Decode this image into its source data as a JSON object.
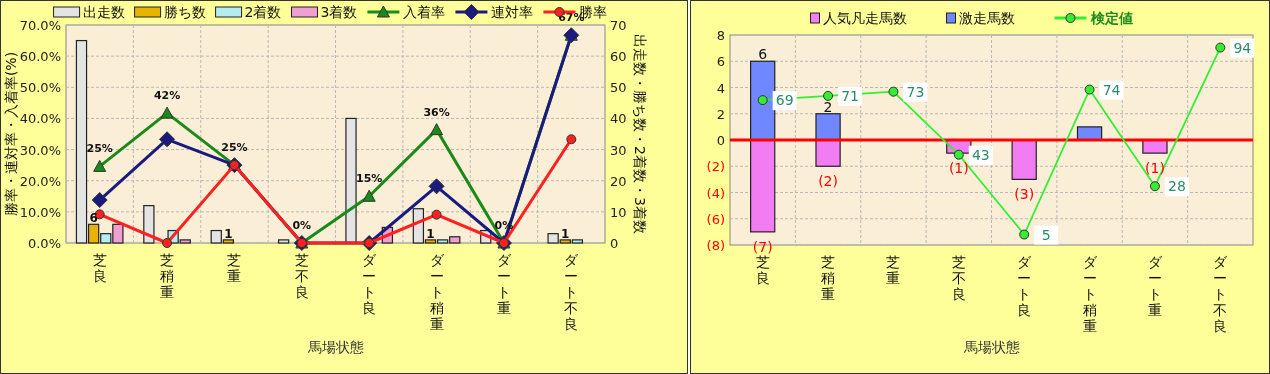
{
  "chart_data": [
    {
      "type": "bar",
      "xlabel": "馬場状態",
      "ylabel": "勝率・連対率・入着率(%)",
      "y2label": "出走数・勝ち数・2着数・3着数",
      "categories": [
        "芝良",
        "芝稍重",
        "芝重",
        "芝不良",
        "ダート良",
        "ダート稍重",
        "ダート重",
        "ダート不良"
      ],
      "series": [
        {
          "name": "出走数",
          "axis": "y2",
          "color": "#e4e4e4",
          "values": [
            65,
            12,
            4,
            1,
            40,
            11,
            4,
            3
          ]
        },
        {
          "name": "勝ち数",
          "axis": "y2",
          "color": "#e8b400",
          "values": [
            6,
            0,
            1,
            0,
            0,
            1,
            0,
            1
          ],
          "value_labels": [
            "6",
            null,
            "1",
            null,
            null,
            "1",
            null,
            "1"
          ]
        },
        {
          "name": "2着数",
          "axis": "y2",
          "color": "#b4ecf0",
          "values": [
            3,
            4,
            0,
            0,
            0,
            1,
            0,
            1
          ]
        },
        {
          "name": "3着数",
          "axis": "y2",
          "color": "#f0a0d0",
          "values": [
            6,
            1,
            0,
            0,
            5,
            2,
            0,
            0
          ]
        },
        {
          "name": "入着率",
          "type": "line",
          "color": "#1a8a1a",
          "marker": "triangle",
          "values": [
            24.6,
            41.7,
            25,
            0,
            15,
            36.4,
            0,
            66.7
          ],
          "value_labels": [
            "25%",
            "42%",
            "25%",
            "0%",
            "15%",
            "36%",
            "0%",
            "67%"
          ]
        },
        {
          "name": "連対率",
          "type": "line",
          "color": "#1a1a80",
          "marker": "diamond",
          "values": [
            13.8,
            33.3,
            25,
            0,
            0,
            18.2,
            0,
            66.7
          ]
        },
        {
          "name": "勝率",
          "type": "line",
          "color": "#ff2020",
          "marker": "circle",
          "values": [
            9.2,
            0,
            25,
            0,
            0,
            9.1,
            0,
            33.3
          ]
        }
      ],
      "ylim": [
        0,
        70
      ],
      "yticks": [
        {
          "value": 0,
          "label": "0.0%"
        },
        {
          "value": 10,
          "label": "10.0%"
        },
        {
          "value": 20,
          "label": "20.0%"
        },
        {
          "value": 30,
          "label": "30.0%"
        },
        {
          "value": 40,
          "label": "40.0%"
        },
        {
          "value": 50,
          "label": "50.0%"
        },
        {
          "value": 60,
          "label": "60.0%"
        },
        {
          "value": 70,
          "label": "70.0%"
        }
      ],
      "y2lim": [
        0,
        70
      ],
      "y2ticks": [
        0,
        10,
        20,
        30,
        40,
        50,
        60,
        70
      ],
      "grid": true,
      "legend": "top"
    },
    {
      "type": "bar",
      "xlabel": "馬場状態",
      "stacked": true,
      "categories": [
        "芝良",
        "芝稍重",
        "芝重",
        "芝不良",
        "ダート良",
        "ダート稍重",
        "ダート重",
        "ダート不良"
      ],
      "series": [
        {
          "name": "人気凡走馬数",
          "color": "#f27cf2",
          "values": [
            -7,
            -2,
            0,
            -1,
            -3,
            0,
            -1,
            0
          ],
          "value_labels": [
            "(7)",
            "(2)",
            null,
            "(1)",
            "(3)",
            null,
            "(1)",
            null
          ]
        },
        {
          "name": "激走馬数",
          "color": "#7088ff",
          "values": [
            6,
            2,
            0,
            0,
            0,
            1,
            0,
            0
          ],
          "value_labels": [
            "6",
            "2",
            null,
            null,
            null,
            null,
            null,
            null
          ]
        },
        {
          "name": "検定値",
          "type": "line",
          "axis": "y2",
          "color": "#33ee33",
          "marker": "circle",
          "values": [
            69,
            71,
            73,
            43,
            5,
            74,
            28,
            94
          ],
          "value_labels": [
            "69",
            "71",
            "73",
            "43",
            "5",
            "74",
            "28",
            "94"
          ]
        }
      ],
      "ylim": [
        -8,
        8
      ],
      "yticks": [
        {
          "value": 8,
          "label": "8"
        },
        {
          "value": 6,
          "label": "6"
        },
        {
          "value": 4,
          "label": "4"
        },
        {
          "value": 2,
          "label": "2"
        },
        {
          "value": 0,
          "label": "0"
        },
        {
          "value": -2,
          "label": "(2)"
        },
        {
          "value": -4,
          "label": "(4)"
        },
        {
          "value": -6,
          "label": "(6)"
        },
        {
          "value": -8,
          "label": "(8)"
        }
      ],
      "y2lim": [
        0,
        100
      ],
      "ref_lines": [
        {
          "axis": "y",
          "value": 0,
          "color": "#ff0000"
        }
      ],
      "grid": true,
      "legend": "top"
    }
  ]
}
